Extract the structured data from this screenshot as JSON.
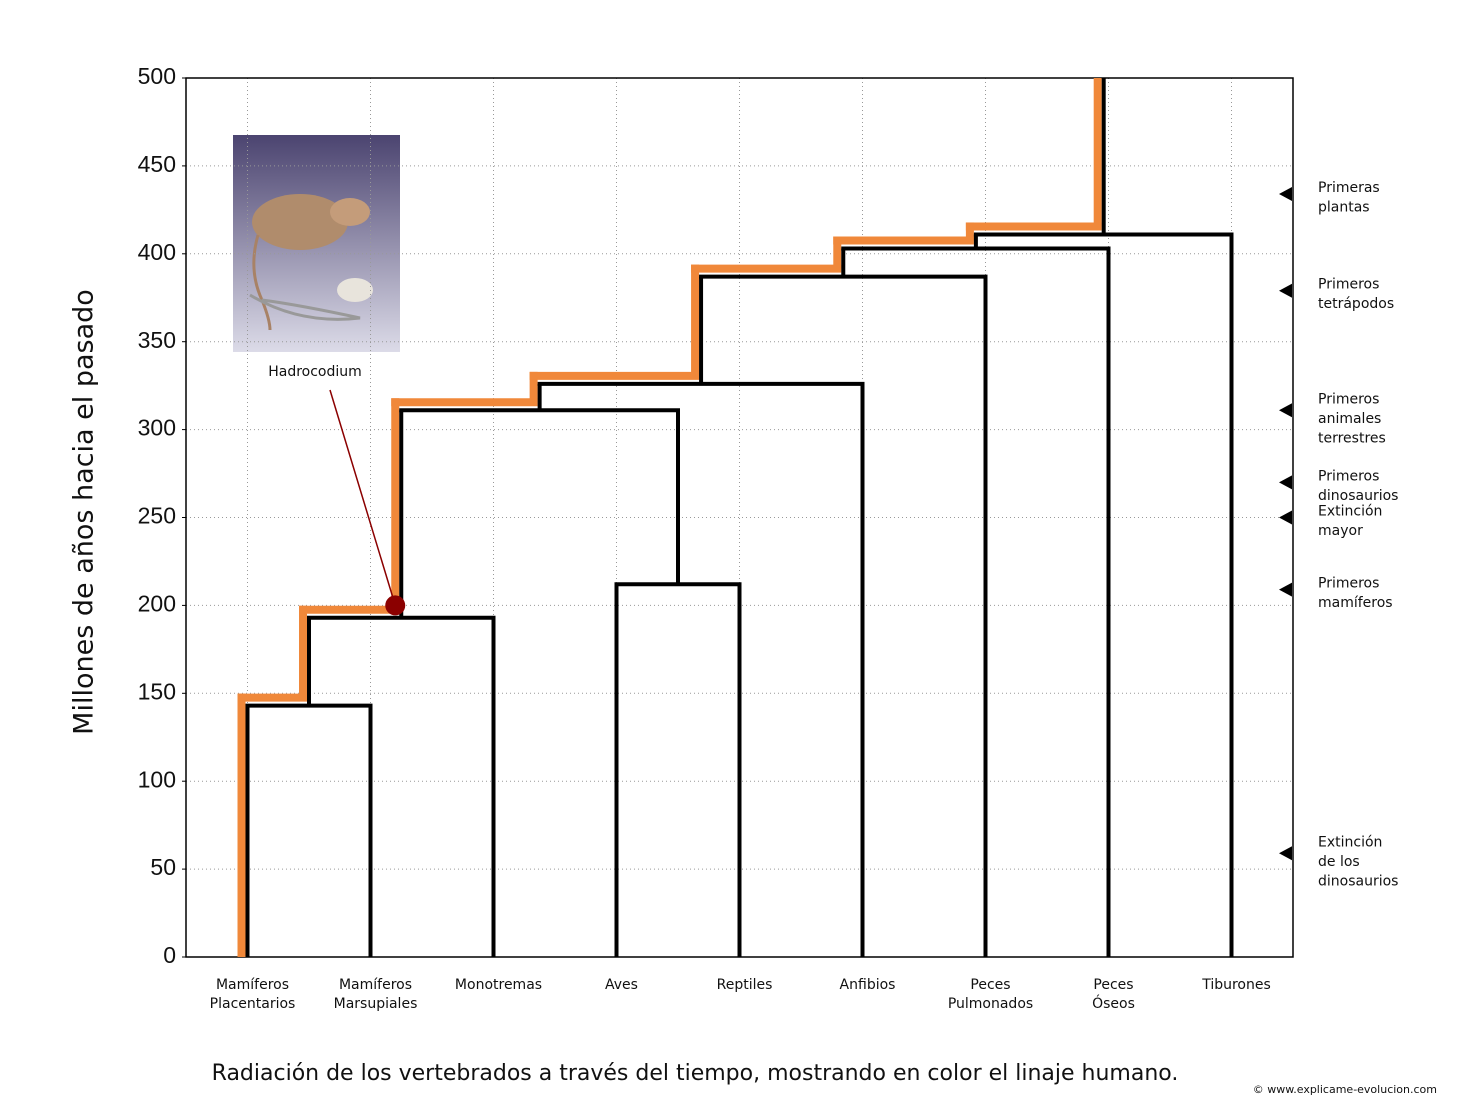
{
  "chart_data": {
    "type": "dendrogram",
    "ylabel": "Millones de años hacia el pasado",
    "caption": "Radiación de los vertebrados a través del tiempo, mostrando en color el linaje humano.",
    "credit": "© www.explicame-evolucion.com",
    "ylim": [
      0,
      500
    ],
    "yticks": [
      0,
      50,
      100,
      150,
      200,
      250,
      300,
      350,
      400,
      450,
      500
    ],
    "grid": true,
    "categories": [
      [
        "Mamíferos",
        "Placentarios"
      ],
      [
        "Mamíferos",
        "Marsupiales"
      ],
      [
        "Monotremas"
      ],
      [
        "Aves"
      ],
      [
        "Reptiles"
      ],
      [
        "Anfibios"
      ],
      [
        "Peces",
        "Pulmonados"
      ],
      [
        "Peces",
        "Óseos"
      ],
      [
        "Tiburones"
      ]
    ],
    "merges": [
      {
        "children": [
          0,
          1
        ],
        "height": 143
      },
      {
        "children": [
          9,
          2
        ],
        "height": 193
      },
      {
        "children": [
          3,
          4
        ],
        "height": 212
      },
      {
        "children": [
          10,
          11
        ],
        "height": 311
      },
      {
        "children": [
          12,
          5
        ],
        "height": 326
      },
      {
        "children": [
          13,
          6
        ],
        "height": 387
      },
      {
        "children": [
          14,
          7
        ],
        "height": 403
      },
      {
        "children": [
          15,
          8
        ],
        "height": 411
      }
    ],
    "color": "#000000",
    "highlight": {
      "leaf": 0,
      "color": "#f0883a"
    },
    "annotation": {
      "text": "Hadrocodium",
      "value": 200,
      "color": "#8b0000"
    },
    "events": [
      {
        "lines": [
          "Primeras",
          "plantas"
        ],
        "value": 434
      },
      {
        "lines": [
          "Primeros",
          "tetrápodos"
        ],
        "value": 379
      },
      {
        "lines": [
          "Primeros",
          "animales",
          "terrestres"
        ],
        "value": 311
      },
      {
        "lines": [
          "Primeros",
          "dinosaurios"
        ],
        "value": 270
      },
      {
        "lines": [
          "Extinción",
          "mayor"
        ],
        "value": 250
      },
      {
        "lines": [
          "Primeros",
          "mamíferos"
        ],
        "value": 209
      },
      {
        "lines": [
          "Extinción",
          "de los",
          "dinosaurios"
        ],
        "value": 59
      }
    ]
  }
}
